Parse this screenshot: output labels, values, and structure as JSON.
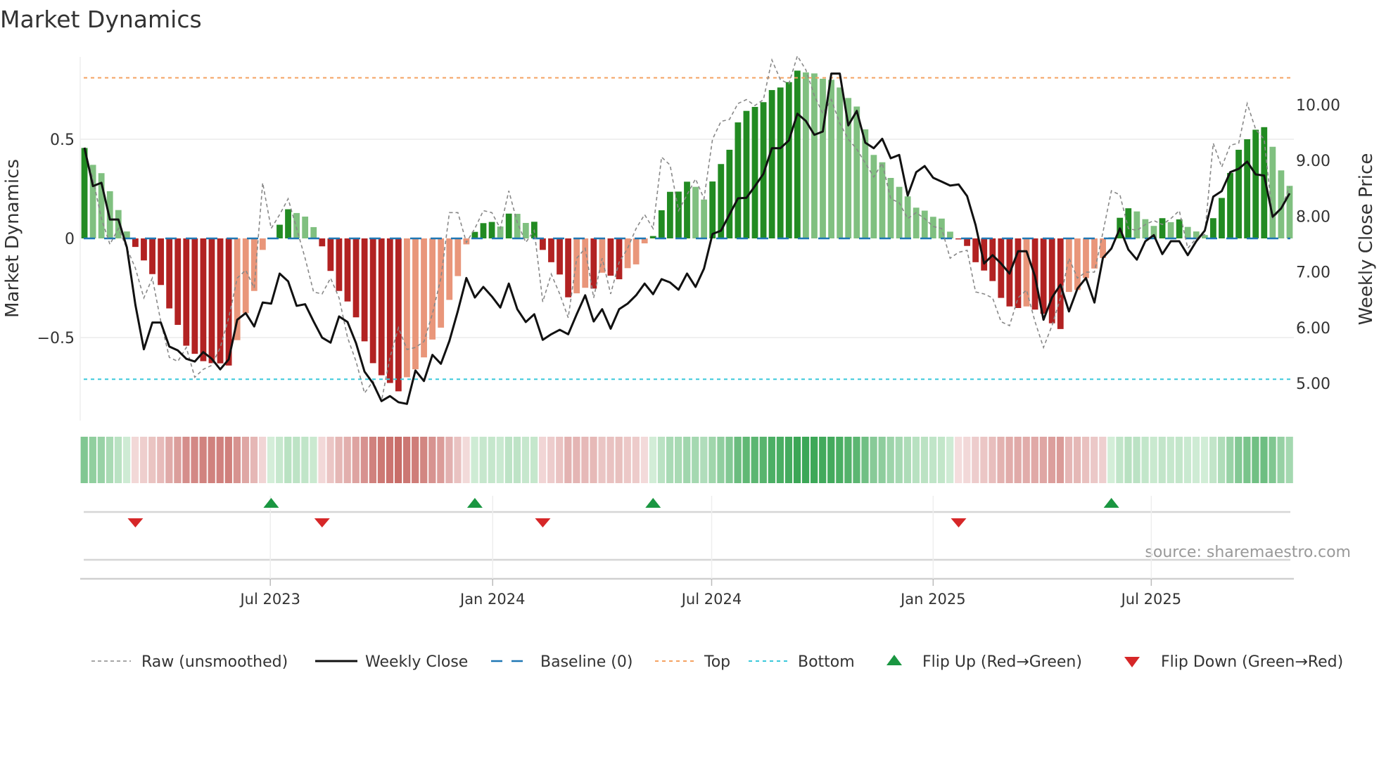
{
  "chart_data": {
    "type": "bar",
    "title": "Market Dynamics",
    "ylabel": "Market Dynamics",
    "y2label": "Weekly Close Price",
    "ylim": [
      -0.92,
      0.915
    ],
    "y2lim": [
      4.08,
      10.86
    ],
    "y_ticks": [
      {
        "value": 0.5,
        "label": "0.5"
      },
      {
        "value": 0,
        "label": "0"
      },
      {
        "value": -0.5,
        "label": "−0.5"
      }
    ],
    "y2_ticks": [
      {
        "value": 10,
        "label": "10.00"
      },
      {
        "value": 9,
        "label": "9.00"
      },
      {
        "value": 8,
        "label": "8.00"
      },
      {
        "value": 7,
        "label": "7.00"
      },
      {
        "value": 6,
        "label": "6.00"
      },
      {
        "value": 5,
        "label": "5.00"
      }
    ],
    "x_ticks": [
      {
        "label": "Jul 2023",
        "week_index": 21.9
      },
      {
        "label": "Jan 2024",
        "week_index": 48.1
      },
      {
        "label": "Jul 2024",
        "week_index": 73.9
      },
      {
        "label": "Jan 2025",
        "week_index": 100
      },
      {
        "label": "Jul 2025",
        "week_index": 125.7
      }
    ],
    "top_level": 0.81,
    "bottom_level": -0.71,
    "baseline": 0,
    "momentum": [
      0.456,
      0.371,
      0.329,
      0.238,
      0.143,
      0.035,
      -0.043,
      -0.111,
      -0.18,
      -0.235,
      -0.353,
      -0.436,
      -0.541,
      -0.582,
      -0.619,
      -0.629,
      -0.63,
      -0.641,
      -0.513,
      -0.377,
      -0.265,
      -0.058,
      0,
      0.069,
      0.147,
      0.128,
      0.11,
      0.057,
      -0.04,
      -0.164,
      -0.265,
      -0.318,
      -0.398,
      -0.519,
      -0.629,
      -0.69,
      -0.729,
      -0.771,
      -0.7,
      -0.66,
      -0.6,
      -0.51,
      -0.45,
      -0.31,
      -0.19,
      -0.03,
      0.033,
      0.077,
      0.083,
      0.06,
      0.125,
      0.124,
      0.078,
      0.084,
      -0.058,
      -0.12,
      -0.182,
      -0.297,
      -0.277,
      -0.249,
      -0.253,
      -0.173,
      -0.188,
      -0.206,
      -0.15,
      -0.131,
      -0.025,
      0.012,
      0.142,
      0.235,
      0.236,
      0.286,
      0.26,
      0.196,
      0.287,
      0.375,
      0.447,
      0.585,
      0.643,
      0.663,
      0.687,
      0.748,
      0.761,
      0.788,
      0.846,
      0.837,
      0.832,
      0.805,
      0.8,
      0.761,
      0.708,
      0.665,
      0.55,
      0.421,
      0.384,
      0.305,
      0.26,
      0.212,
      0.155,
      0.14,
      0.109,
      0.1,
      0.034,
      -0.005,
      -0.038,
      -0.12,
      -0.162,
      -0.215,
      -0.3,
      -0.343,
      -0.351,
      -0.343,
      -0.359,
      -0.38,
      -0.428,
      -0.457,
      -0.27,
      -0.26,
      -0.2,
      -0.152,
      -0.099,
      0.005,
      0.104,
      0.152,
      0.136,
      0.097,
      0.063,
      0.102,
      0.082,
      0.096,
      0.058,
      0.035,
      0.017,
      0.102,
      0.204,
      0.33,
      0.447,
      0.5,
      0.548,
      0.561,
      0.462,
      0.343,
      0.265
    ],
    "raw": [
      0.45,
      0.3,
      0.1,
      -0.03,
      0.05,
      -0.05,
      -0.15,
      -0.3,
      -0.2,
      -0.42,
      -0.6,
      -0.62,
      -0.55,
      -0.7,
      -0.66,
      -0.64,
      -0.55,
      -0.4,
      -0.2,
      -0.16,
      -0.25,
      0.28,
      0.05,
      0.12,
      0.2,
      0.05,
      -0.1,
      -0.27,
      -0.28,
      -0.2,
      -0.3,
      -0.5,
      -0.62,
      -0.78,
      -0.72,
      -0.82,
      -0.6,
      -0.45,
      -0.56,
      -0.55,
      -0.52,
      -0.38,
      -0.2,
      0.13,
      0.13,
      -0.02,
      0.05,
      0.14,
      0.13,
      0.05,
      0.24,
      0.08,
      -0.02,
      0.04,
      -0.32,
      -0.18,
      -0.28,
      -0.4,
      -0.1,
      -0.05,
      -0.3,
      -0.1,
      -0.28,
      -0.12,
      -0.05,
      0.05,
      0.12,
      0.05,
      0.41,
      0.37,
      0.14,
      0.22,
      0.3,
      0.2,
      0.5,
      0.59,
      0.6,
      0.68,
      0.7,
      0.67,
      0.7,
      0.9,
      0.8,
      0.78,
      0.92,
      0.85,
      0.72,
      0.63,
      0.7,
      0.58,
      0.5,
      0.45,
      0.38,
      0.31,
      0.38,
      0.2,
      0.18,
      0.1,
      0.13,
      0.1,
      0.06,
      0.05,
      -0.1,
      -0.07,
      -0.06,
      -0.27,
      -0.28,
      -0.3,
      -0.42,
      -0.44,
      -0.3,
      -0.26,
      -0.42,
      -0.55,
      -0.44,
      -0.3,
      -0.1,
      -0.2,
      -0.17,
      -0.17,
      0.03,
      0.24,
      0.22,
      0.05,
      0.04,
      0.07,
      0.09,
      0.07,
      0.1,
      0.14,
      -0.05,
      0,
      0.02,
      0.48,
      0.36,
      0.47,
      0.48,
      0.68,
      0.55,
      0.5,
      0.1,
      0.15,
      0.26
    ],
    "weekly_close": [
      9.23,
      8.54,
      8.6,
      7.94,
      7.94,
      7.44,
      6.41,
      5.61,
      6.09,
      6.09,
      5.66,
      5.59,
      5.44,
      5.39,
      5.56,
      5.44,
      5.25,
      5.43,
      6.14,
      6.26,
      6.02,
      6.45,
      6.43,
      6.97,
      6.83,
      6.39,
      6.42,
      6.11,
      5.82,
      5.73,
      6.2,
      6.1,
      5.72,
      5.21,
      5.0,
      4.68,
      4.77,
      4.66,
      4.63,
      5.23,
      5.04,
      5.51,
      5.35,
      5.76,
      6.3,
      6.89,
      6.54,
      6.73,
      6.56,
      6.36,
      6.79,
      6.33,
      6.1,
      6.24,
      5.78,
      5.88,
      5.96,
      5.88,
      6.24,
      6.58,
      6.11,
      6.33,
      5.98,
      6.33,
      6.43,
      6.58,
      6.79,
      6.6,
      6.87,
      6.81,
      6.68,
      6.97,
      6.73,
      7.06,
      7.68,
      7.74,
      8.03,
      8.32,
      8.33,
      8.54,
      8.76,
      9.22,
      9.22,
      9.36,
      9.84,
      9.71,
      9.46,
      9.52,
      10.56,
      10.56,
      9.63,
      9.89,
      9.32,
      9.22,
      9.39,
      9.04,
      9.1,
      8.37,
      8.79,
      8.9,
      8.69,
      8.62,
      8.55,
      8.57,
      8.36,
      7.84,
      7.15,
      7.3,
      7.15,
      6.97,
      7.37,
      7.37,
      6.92,
      6.14,
      6.54,
      6.77,
      6.29,
      6.7,
      6.89,
      6.45,
      7.25,
      7.42,
      7.78,
      7.4,
      7.22,
      7.55,
      7.66,
      7.32,
      7.55,
      7.55,
      7.3,
      7.55,
      7.74,
      8.35,
      8.45,
      8.79,
      8.85,
      8.98,
      8.75,
      8.73,
      7.99,
      8.14,
      8.41
    ],
    "flip_up": [
      22,
      46,
      67,
      121
    ],
    "flip_down": [
      6,
      28,
      54,
      103
    ],
    "colors": {
      "up_rising": "#228b22",
      "up_falling": "#80c080",
      "down_falling": "#b22222",
      "down_rising": "#e9967a",
      "raw": "#888888",
      "close": "#111111",
      "baseline": "#1f77b4",
      "top": "#f4a261",
      "bottom": "#3bc9db",
      "flip_up": "#1a9641",
      "flip_down": "#d62728"
    },
    "legend": {
      "position": "bottom",
      "items": [
        {
          "label": "Raw (unsmoothed)",
          "kind": "raw"
        },
        {
          "label": "Weekly Close",
          "kind": "close"
        },
        {
          "label": "Baseline (0)",
          "kind": "baseline"
        },
        {
          "label": "Top",
          "kind": "top"
        },
        {
          "label": "Bottom",
          "kind": "bottom"
        },
        {
          "label": "Flip Up (Red→Green)",
          "kind": "flip_up"
        },
        {
          "label": "Flip Down (Green→Red)",
          "kind": "flip_down"
        }
      ]
    },
    "source": "source: sharemaestro.com"
  }
}
